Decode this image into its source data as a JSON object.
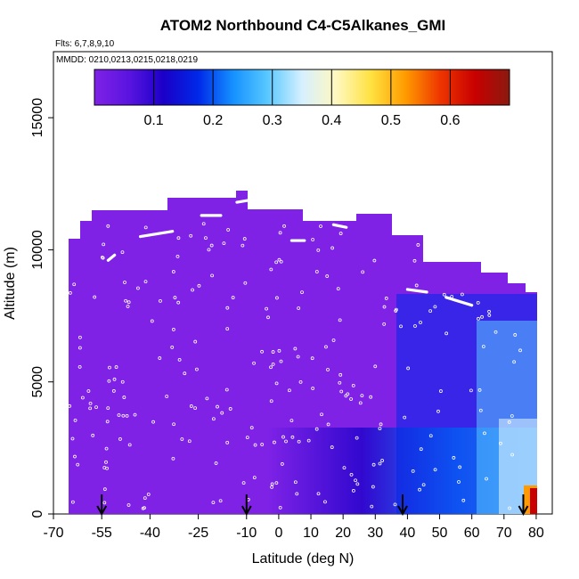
{
  "chart_data": {
    "type": "heatmap",
    "title": "ATOM2 Northbound C4-C5Alkanes_GMI",
    "flights_label": "Flts: 6,7,8,9,10",
    "mmdd_label": "MMDD: 0210,0213,0215,0218,0219",
    "xlabel": "Latitude (deg N)",
    "ylabel": "Altitude (m)",
    "xlim": [
      -70,
      85
    ],
    "ylim": [
      0,
      17500
    ],
    "x_ticks": [
      -70,
      -55,
      -40,
      -25,
      -10,
      0,
      10,
      20,
      30,
      40,
      50,
      60,
      70,
      80
    ],
    "y_ticks": [
      0,
      5000,
      10000,
      15000
    ],
    "colorbar": {
      "range": [
        0,
        0.7
      ],
      "ticks": [
        0.1,
        0.2,
        0.3,
        0.4,
        0.5,
        0.6
      ],
      "colors": [
        "#7f22e6",
        "#5a14e0",
        "#1a00c8",
        "#0028e8",
        "#1590ff",
        "#58c8ff",
        "#d6f0ff",
        "#fff8c0",
        "#ffe140",
        "#ff9a00",
        "#ee3500",
        "#c80000",
        "#8a1a10"
      ]
    },
    "arrows_lat": [
      -55,
      -10,
      38.5,
      76
    ],
    "colors": {
      "background": "#7f22e6",
      "flight_track": "#ffffff",
      "arrow": "#000000"
    }
  }
}
